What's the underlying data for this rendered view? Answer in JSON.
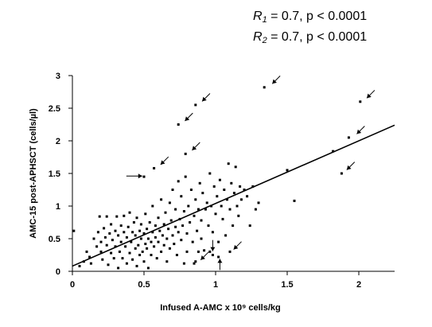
{
  "stats": [
    {
      "symbol": "R",
      "sub": "1",
      "text": " = 0.7, p < 0.0001"
    },
    {
      "symbol": "R",
      "sub": "2",
      "text": " = 0.7, p < 0.0001"
    }
  ],
  "chart_data": {
    "type": "scatter",
    "xlabel": "Infused A-AMC x 10⁹ cells/kg",
    "ylabel": "AMC-15 post-APHSCT (cells/µl)",
    "xlim": [
      0,
      2.25
    ],
    "ylim": [
      0,
      3
    ],
    "xticks": [
      0,
      0.5,
      1,
      1.5,
      2
    ],
    "xtick_labels": [
      "0",
      "0.5",
      "1",
      "1.5",
      "2"
    ],
    "yticks": [
      0,
      0.5,
      1,
      1.5,
      2,
      2.5,
      3
    ],
    "ytick_labels": [
      "0",
      "0.5",
      "1",
      "1.5",
      "2",
      "2.5",
      "3"
    ],
    "grid": false,
    "regression_line": {
      "x": [
        0,
        2.25
      ],
      "y": [
        0.08,
        2.24
      ]
    },
    "points": [
      [
        0.01,
        0.62
      ],
      [
        0.05,
        0.08
      ],
      [
        0.08,
        0.15
      ],
      [
        0.1,
        0.3
      ],
      [
        0.12,
        0.22
      ],
      [
        0.13,
        0.12
      ],
      [
        0.15,
        0.5
      ],
      [
        0.17,
        0.38
      ],
      [
        0.18,
        0.6
      ],
      [
        0.19,
        0.84
      ],
      [
        0.2,
        0.45
      ],
      [
        0.2,
        0.3
      ],
      [
        0.21,
        0.18
      ],
      [
        0.22,
        0.66
      ],
      [
        0.23,
        0.52
      ],
      [
        0.24,
        0.4
      ],
      [
        0.24,
        0.84
      ],
      [
        0.25,
        0.1
      ],
      [
        0.26,
        0.58
      ],
      [
        0.27,
        0.28
      ],
      [
        0.27,
        0.72
      ],
      [
        0.28,
        0.48
      ],
      [
        0.29,
        0.2
      ],
      [
        0.3,
        0.62
      ],
      [
        0.3,
        0.38
      ],
      [
        0.31,
        0.84
      ],
      [
        0.32,
        0.55
      ],
      [
        0.32,
        0.05
      ],
      [
        0.33,
        0.3
      ],
      [
        0.34,
        0.7
      ],
      [
        0.34,
        0.45
      ],
      [
        0.35,
        0.2
      ],
      [
        0.36,
        0.6
      ],
      [
        0.36,
        0.85
      ],
      [
        0.37,
        0.38
      ],
      [
        0.38,
        0.52
      ],
      [
        0.38,
        0.12
      ],
      [
        0.39,
        0.68
      ],
      [
        0.4,
        0.28
      ],
      [
        0.4,
        0.9
      ],
      [
        0.41,
        0.45
      ],
      [
        0.42,
        0.6
      ],
      [
        0.42,
        0.18
      ],
      [
        0.43,
        0.75
      ],
      [
        0.44,
        0.35
      ],
      [
        0.44,
        0.55
      ],
      [
        0.45,
        0.08
      ],
      [
        0.45,
        0.82
      ],
      [
        0.46,
        0.4
      ],
      [
        0.47,
        0.62
      ],
      [
        0.47,
        0.25
      ],
      [
        0.48,
        0.5
      ],
      [
        0.48,
        0.72
      ],
      [
        0.49,
        0.3
      ],
      [
        0.5,
        0.58
      ],
      [
        0.5,
        0.15
      ],
      [
        0.51,
        0.42
      ],
      [
        0.51,
        0.88
      ],
      [
        0.52,
        0.65
      ],
      [
        0.52,
        0.35
      ],
      [
        0.53,
        0.5
      ],
      [
        0.53,
        0.05
      ],
      [
        0.54,
        0.75
      ],
      [
        0.55,
        0.45
      ],
      [
        0.55,
        0.25
      ],
      [
        0.56,
        0.6
      ],
      [
        0.56,
        1.0
      ],
      [
        0.57,
        0.38
      ],
      [
        0.58,
        0.7
      ],
      [
        0.58,
        0.52
      ],
      [
        0.59,
        0.2
      ],
      [
        0.6,
        0.82
      ],
      [
        0.6,
        0.45
      ],
      [
        0.61,
        0.62
      ],
      [
        0.62,
        0.3
      ],
      [
        0.62,
        1.1
      ],
      [
        0.63,
        0.55
      ],
      [
        0.64,
        0.72
      ],
      [
        0.64,
        0.4
      ],
      [
        0.65,
        0.9
      ],
      [
        0.66,
        0.5
      ],
      [
        0.66,
        0.15
      ],
      [
        0.67,
        0.65
      ],
      [
        0.68,
        1.05
      ],
      [
        0.68,
        0.35
      ],
      [
        0.69,
        0.78
      ],
      [
        0.7,
        0.55
      ],
      [
        0.7,
        1.25
      ],
      [
        0.71,
        0.42
      ],
      [
        0.72,
        0.68
      ],
      [
        0.72,
        0.95
      ],
      [
        0.73,
        0.25
      ],
      [
        0.74,
        0.6
      ],
      [
        0.74,
        1.38
      ],
      [
        0.75,
        0.8
      ],
      [
        0.76,
        0.48
      ],
      [
        0.76,
        1.15
      ],
      [
        0.77,
        0.7
      ],
      [
        0.78,
        0.12
      ],
      [
        0.78,
        0.92
      ],
      [
        0.79,
        1.45
      ],
      [
        0.8,
        0.58
      ],
      [
        0.8,
        0.3
      ],
      [
        0.81,
        1.0
      ],
      [
        0.82,
        0.75
      ],
      [
        0.83,
        1.25
      ],
      [
        0.84,
        0.45
      ],
      [
        0.85,
        0.85
      ],
      [
        0.86,
        0.15
      ],
      [
        0.86,
        1.1
      ],
      [
        0.87,
        0.62
      ],
      [
        0.88,
        0.95
      ],
      [
        0.89,
        1.35
      ],
      [
        0.9,
        0.78
      ],
      [
        0.9,
        0.5
      ],
      [
        0.91,
        1.2
      ],
      [
        0.92,
        0.32
      ],
      [
        0.93,
        0.95
      ],
      [
        0.94,
        1.05
      ],
      [
        0.95,
        0.7
      ],
      [
        0.96,
        1.5
      ],
      [
        0.96,
        0.3
      ],
      [
        0.97,
        1.0
      ],
      [
        0.98,
        0.6
      ],
      [
        0.99,
        1.3
      ],
      [
        1.0,
        0.88
      ],
      [
        1.01,
        1.15
      ],
      [
        1.02,
        0.45
      ],
      [
        1.03,
        1.4
      ],
      [
        1.04,
        1.0
      ],
      [
        1.05,
        0.8
      ],
      [
        1.06,
        1.25
      ],
      [
        1.07,
        0.55
      ],
      [
        1.08,
        1.1
      ],
      [
        1.09,
        1.65
      ],
      [
        1.1,
        0.95
      ],
      [
        1.11,
        1.35
      ],
      [
        1.12,
        0.7
      ],
      [
        1.13,
        1.2
      ],
      [
        1.14,
        1.6
      ],
      [
        1.15,
        1.0
      ],
      [
        1.16,
        0.85
      ],
      [
        1.17,
        1.3
      ],
      [
        1.18,
        1.1
      ],
      [
        1.2,
        1.25
      ],
      [
        1.22,
        1.15
      ],
      [
        1.24,
        0.7
      ],
      [
        1.26,
        1.3
      ],
      [
        1.28,
        0.95
      ],
      [
        1.3,
        1.05
      ],
      [
        1.5,
        1.55
      ],
      [
        1.55,
        1.08
      ],
      [
        1.82,
        1.84
      ],
      [
        1.93,
        2.05
      ],
      [
        2.01,
        2.6
      ],
      [
        1.34,
        2.82
      ],
      [
        0.86,
        2.55
      ],
      [
        0.74,
        2.25
      ],
      [
        0.79,
        1.8
      ],
      [
        0.57,
        1.58
      ],
      [
        0.5,
        1.45
      ],
      [
        1.88,
        1.5
      ],
      [
        0.88,
        0.3
      ],
      [
        0.98,
        0.25
      ],
      [
        1.02,
        0.22
      ],
      [
        0.85,
        0.12
      ],
      [
        1.1,
        0.3
      ]
    ],
    "arrows": [
      {
        "x": 1.38,
        "y": 2.84,
        "dir": "sw"
      },
      {
        "x": 0.89,
        "y": 2.57,
        "dir": "sw"
      },
      {
        "x": 0.77,
        "y": 2.27,
        "dir": "sw"
      },
      {
        "x": 0.82,
        "y": 1.82,
        "dir": "sw"
      },
      {
        "x": 0.6,
        "y": 1.6,
        "dir": "sw"
      },
      {
        "x": 0.51,
        "y": 1.46,
        "dir": "e"
      },
      {
        "x": 2.04,
        "y": 2.62,
        "dir": "sw"
      },
      {
        "x": 1.97,
        "y": 2.07,
        "dir": "sw"
      },
      {
        "x": 1.9,
        "y": 1.52,
        "dir": "sw"
      },
      {
        "x": 0.88,
        "y": 0.14,
        "dir": "sw"
      },
      {
        "x": 0.98,
        "y": 0.26,
        "dir": "s"
      },
      {
        "x": 1.03,
        "y": 0.24,
        "dir": "n"
      },
      {
        "x": 1.11,
        "y": 0.3,
        "dir": "sw"
      }
    ]
  }
}
